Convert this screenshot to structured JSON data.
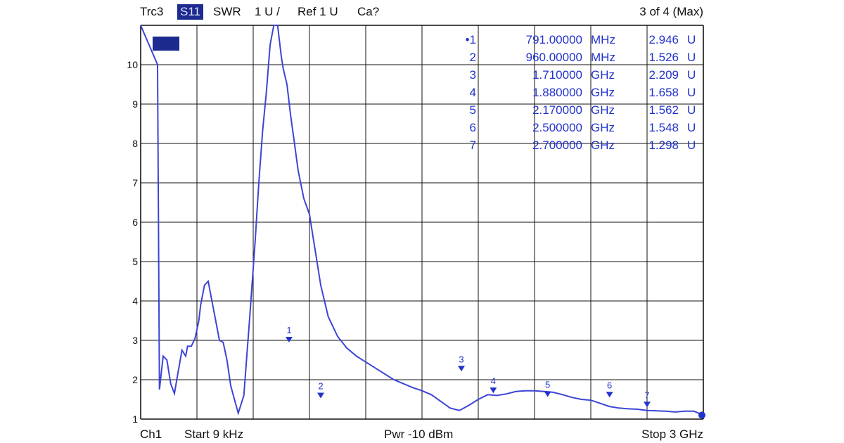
{
  "header": {
    "trace": "Trc3",
    "param": "S11",
    "format": "SWR",
    "scale": "1 U /",
    "ref": "Ref 1 U",
    "cal": "Ca?",
    "page": "3 of 4 (Max)"
  },
  "footer": {
    "channel": "Ch1",
    "start": "Start  9 kHz",
    "power": "Pwr  -10 dBm",
    "stop": "Stop  3 GHz"
  },
  "colors": {
    "trace": "#3b45d6",
    "marker": "#2233cc",
    "grid": "#111111",
    "badge": "#1d2a8f"
  },
  "chart_data": {
    "type": "line",
    "xlim": [
      9e-06,
      3.0
    ],
    "x_unit": "GHz",
    "ylim": [
      1,
      11
    ],
    "y_ticks": [
      "1",
      "2",
      "3",
      "4",
      "5",
      "6",
      "7",
      "8",
      "9",
      "10"
    ],
    "grid": true,
    "trace_badge": "S11",
    "series": [
      {
        "x": [
          0.0,
          0.09,
          0.1,
          0.12,
          0.14,
          0.16,
          0.18,
          0.2,
          0.22,
          0.24,
          0.25,
          0.27,
          0.29,
          0.31,
          0.32,
          0.34,
          0.36,
          0.38,
          0.4,
          0.42,
          0.44,
          0.46,
          0.48,
          0.52,
          0.55,
          0.58,
          0.61,
          0.63,
          0.65,
          0.67,
          0.69,
          0.71,
          0.73,
          0.75,
          0.76,
          0.78,
          0.8,
          0.82,
          0.84,
          0.87,
          0.9,
          0.92,
          0.94,
          0.96,
          1.0,
          1.05,
          1.1,
          1.15,
          1.2,
          1.25,
          1.3,
          1.35,
          1.4,
          1.45,
          1.5,
          1.55,
          1.6,
          1.65,
          1.7,
          1.75,
          1.8,
          1.85,
          1.9,
          1.95,
          2.0,
          2.05,
          2.1,
          2.15,
          2.2,
          2.25,
          2.3,
          2.35,
          2.4,
          2.45,
          2.5,
          2.55,
          2.6,
          2.65,
          2.7,
          2.75,
          2.8,
          2.85,
          2.9,
          2.95,
          3.0
        ],
        "y": [
          11.0,
          10.0,
          1.75,
          2.6,
          2.5,
          1.9,
          1.65,
          2.2,
          2.75,
          2.6,
          2.85,
          2.85,
          3.05,
          3.5,
          3.9,
          4.4,
          4.5,
          4.0,
          3.5,
          3.0,
          2.95,
          2.5,
          1.85,
          1.15,
          1.6,
          3.5,
          5.5,
          7.0,
          8.3,
          9.3,
          10.5,
          11.0,
          11.0,
          10.2,
          9.9,
          9.5,
          8.7,
          8.0,
          7.3,
          6.6,
          6.2,
          5.6,
          5.0,
          4.4,
          3.6,
          3.1,
          2.8,
          2.6,
          2.45,
          2.3,
          2.15,
          2.0,
          1.9,
          1.8,
          1.72,
          1.62,
          1.45,
          1.28,
          1.22,
          1.35,
          1.5,
          1.62,
          1.6,
          1.64,
          1.7,
          1.72,
          1.72,
          1.7,
          1.68,
          1.62,
          1.55,
          1.5,
          1.48,
          1.4,
          1.32,
          1.28,
          1.26,
          1.25,
          1.22,
          1.21,
          1.2,
          1.18,
          1.2,
          1.2,
          1.1
        ]
      }
    ],
    "markers": [
      {
        "id": "1",
        "label": "•1",
        "x": 0.791,
        "y": 2.946,
        "freq": "791.00000",
        "unit": "MHz",
        "value": "2.946",
        "vunit": "U"
      },
      {
        "id": "2",
        "label": "2",
        "x": 0.96,
        "y": 1.526,
        "freq": "960.00000",
        "unit": "MHz",
        "value": "1.526",
        "vunit": "U"
      },
      {
        "id": "3",
        "label": "3",
        "x": 1.71,
        "y": 2.209,
        "freq": "1.710000",
        "unit": "GHz",
        "value": "2.209",
        "vunit": "U"
      },
      {
        "id": "4",
        "label": "4",
        "x": 1.88,
        "y": 1.658,
        "freq": "1.880000",
        "unit": "GHz",
        "value": "1.658",
        "vunit": "U"
      },
      {
        "id": "5",
        "label": "5",
        "x": 2.17,
        "y": 1.562,
        "freq": "2.170000",
        "unit": "GHz",
        "value": "1.562",
        "vunit": "U"
      },
      {
        "id": "6",
        "label": "6",
        "x": 2.5,
        "y": 1.548,
        "freq": "2.500000",
        "unit": "GHz",
        "value": "1.548",
        "vunit": "U"
      },
      {
        "id": "7",
        "label": "7",
        "x": 2.7,
        "y": 1.298,
        "freq": "2.700000",
        "unit": "GHz",
        "value": "1.298",
        "vunit": "U"
      }
    ]
  }
}
